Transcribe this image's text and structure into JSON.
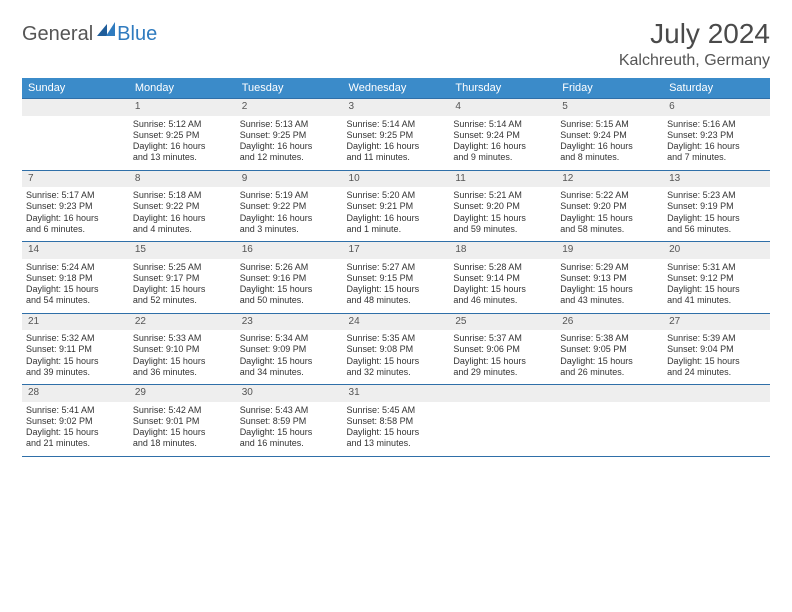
{
  "logo": {
    "general": "General",
    "blue": "Blue"
  },
  "header": {
    "title": "July 2024",
    "location": "Kalchreuth, Germany"
  },
  "colors": {
    "header_bg": "#3b8bc9",
    "header_text": "#ffffff",
    "daynum_bg": "#eeeeee",
    "rule": "#2f6fa8",
    "logo_blue": "#2f7bbf",
    "text": "#333333"
  },
  "dayNames": [
    "Sunday",
    "Monday",
    "Tuesday",
    "Wednesday",
    "Thursday",
    "Friday",
    "Saturday"
  ],
  "weeks": [
    {
      "nums": [
        "",
        "1",
        "2",
        "3",
        "4",
        "5",
        "6"
      ],
      "cells": [
        null,
        {
          "sr": "Sunrise: 5:12 AM",
          "ss": "Sunset: 9:25 PM",
          "d1": "Daylight: 16 hours",
          "d2": "and 13 minutes."
        },
        {
          "sr": "Sunrise: 5:13 AM",
          "ss": "Sunset: 9:25 PM",
          "d1": "Daylight: 16 hours",
          "d2": "and 12 minutes."
        },
        {
          "sr": "Sunrise: 5:14 AM",
          "ss": "Sunset: 9:25 PM",
          "d1": "Daylight: 16 hours",
          "d2": "and 11 minutes."
        },
        {
          "sr": "Sunrise: 5:14 AM",
          "ss": "Sunset: 9:24 PM",
          "d1": "Daylight: 16 hours",
          "d2": "and 9 minutes."
        },
        {
          "sr": "Sunrise: 5:15 AM",
          "ss": "Sunset: 9:24 PM",
          "d1": "Daylight: 16 hours",
          "d2": "and 8 minutes."
        },
        {
          "sr": "Sunrise: 5:16 AM",
          "ss": "Sunset: 9:23 PM",
          "d1": "Daylight: 16 hours",
          "d2": "and 7 minutes."
        }
      ]
    },
    {
      "nums": [
        "7",
        "8",
        "9",
        "10",
        "11",
        "12",
        "13"
      ],
      "cells": [
        {
          "sr": "Sunrise: 5:17 AM",
          "ss": "Sunset: 9:23 PM",
          "d1": "Daylight: 16 hours",
          "d2": "and 6 minutes."
        },
        {
          "sr": "Sunrise: 5:18 AM",
          "ss": "Sunset: 9:22 PM",
          "d1": "Daylight: 16 hours",
          "d2": "and 4 minutes."
        },
        {
          "sr": "Sunrise: 5:19 AM",
          "ss": "Sunset: 9:22 PM",
          "d1": "Daylight: 16 hours",
          "d2": "and 3 minutes."
        },
        {
          "sr": "Sunrise: 5:20 AM",
          "ss": "Sunset: 9:21 PM",
          "d1": "Daylight: 16 hours",
          "d2": "and 1 minute."
        },
        {
          "sr": "Sunrise: 5:21 AM",
          "ss": "Sunset: 9:20 PM",
          "d1": "Daylight: 15 hours",
          "d2": "and 59 minutes."
        },
        {
          "sr": "Sunrise: 5:22 AM",
          "ss": "Sunset: 9:20 PM",
          "d1": "Daylight: 15 hours",
          "d2": "and 58 minutes."
        },
        {
          "sr": "Sunrise: 5:23 AM",
          "ss": "Sunset: 9:19 PM",
          "d1": "Daylight: 15 hours",
          "d2": "and 56 minutes."
        }
      ]
    },
    {
      "nums": [
        "14",
        "15",
        "16",
        "17",
        "18",
        "19",
        "20"
      ],
      "cells": [
        {
          "sr": "Sunrise: 5:24 AM",
          "ss": "Sunset: 9:18 PM",
          "d1": "Daylight: 15 hours",
          "d2": "and 54 minutes."
        },
        {
          "sr": "Sunrise: 5:25 AM",
          "ss": "Sunset: 9:17 PM",
          "d1": "Daylight: 15 hours",
          "d2": "and 52 minutes."
        },
        {
          "sr": "Sunrise: 5:26 AM",
          "ss": "Sunset: 9:16 PM",
          "d1": "Daylight: 15 hours",
          "d2": "and 50 minutes."
        },
        {
          "sr": "Sunrise: 5:27 AM",
          "ss": "Sunset: 9:15 PM",
          "d1": "Daylight: 15 hours",
          "d2": "and 48 minutes."
        },
        {
          "sr": "Sunrise: 5:28 AM",
          "ss": "Sunset: 9:14 PM",
          "d1": "Daylight: 15 hours",
          "d2": "and 46 minutes."
        },
        {
          "sr": "Sunrise: 5:29 AM",
          "ss": "Sunset: 9:13 PM",
          "d1": "Daylight: 15 hours",
          "d2": "and 43 minutes."
        },
        {
          "sr": "Sunrise: 5:31 AM",
          "ss": "Sunset: 9:12 PM",
          "d1": "Daylight: 15 hours",
          "d2": "and 41 minutes."
        }
      ]
    },
    {
      "nums": [
        "21",
        "22",
        "23",
        "24",
        "25",
        "26",
        "27"
      ],
      "cells": [
        {
          "sr": "Sunrise: 5:32 AM",
          "ss": "Sunset: 9:11 PM",
          "d1": "Daylight: 15 hours",
          "d2": "and 39 minutes."
        },
        {
          "sr": "Sunrise: 5:33 AM",
          "ss": "Sunset: 9:10 PM",
          "d1": "Daylight: 15 hours",
          "d2": "and 36 minutes."
        },
        {
          "sr": "Sunrise: 5:34 AM",
          "ss": "Sunset: 9:09 PM",
          "d1": "Daylight: 15 hours",
          "d2": "and 34 minutes."
        },
        {
          "sr": "Sunrise: 5:35 AM",
          "ss": "Sunset: 9:08 PM",
          "d1": "Daylight: 15 hours",
          "d2": "and 32 minutes."
        },
        {
          "sr": "Sunrise: 5:37 AM",
          "ss": "Sunset: 9:06 PM",
          "d1": "Daylight: 15 hours",
          "d2": "and 29 minutes."
        },
        {
          "sr": "Sunrise: 5:38 AM",
          "ss": "Sunset: 9:05 PM",
          "d1": "Daylight: 15 hours",
          "d2": "and 26 minutes."
        },
        {
          "sr": "Sunrise: 5:39 AM",
          "ss": "Sunset: 9:04 PM",
          "d1": "Daylight: 15 hours",
          "d2": "and 24 minutes."
        }
      ]
    },
    {
      "nums": [
        "28",
        "29",
        "30",
        "31",
        "",
        "",
        ""
      ],
      "cells": [
        {
          "sr": "Sunrise: 5:41 AM",
          "ss": "Sunset: 9:02 PM",
          "d1": "Daylight: 15 hours",
          "d2": "and 21 minutes."
        },
        {
          "sr": "Sunrise: 5:42 AM",
          "ss": "Sunset: 9:01 PM",
          "d1": "Daylight: 15 hours",
          "d2": "and 18 minutes."
        },
        {
          "sr": "Sunrise: 5:43 AM",
          "ss": "Sunset: 8:59 PM",
          "d1": "Daylight: 15 hours",
          "d2": "and 16 minutes."
        },
        {
          "sr": "Sunrise: 5:45 AM",
          "ss": "Sunset: 8:58 PM",
          "d1": "Daylight: 15 hours",
          "d2": "and 13 minutes."
        },
        null,
        null,
        null
      ]
    }
  ]
}
